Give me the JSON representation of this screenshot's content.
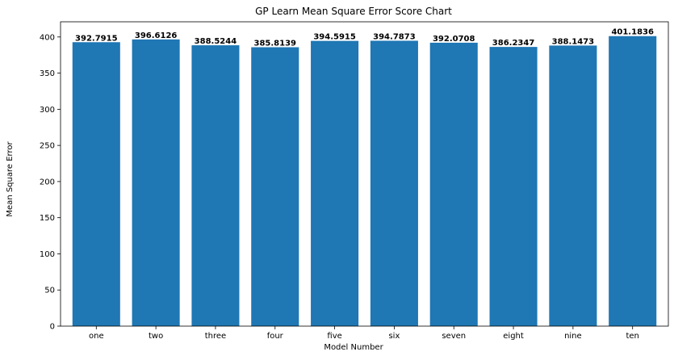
{
  "chart_data": {
    "type": "bar",
    "title": "GP Learn Mean Square Error Score Chart",
    "xlabel": "Model Number",
    "ylabel": "Mean Square Error",
    "categories": [
      "one",
      "two",
      "three",
      "four",
      "five",
      "six",
      "seven",
      "eight",
      "nine",
      "ten"
    ],
    "values": [
      392.7915,
      396.6126,
      388.5244,
      385.8139,
      394.5915,
      394.7873,
      392.0708,
      386.2347,
      388.1473,
      401.1836
    ],
    "data_labels": [
      "392.7915",
      "396.6126",
      "388.5244",
      "385.8139",
      "394.5915",
      "394.7873",
      "392.0708",
      "386.2347",
      "388.1473",
      "401.1836"
    ],
    "ylim": [
      0,
      421
    ],
    "yticks": [
      0,
      50,
      100,
      150,
      200,
      250,
      300,
      350,
      400
    ],
    "bar_color": "#1f77b4",
    "grid": false,
    "legend": false
  }
}
